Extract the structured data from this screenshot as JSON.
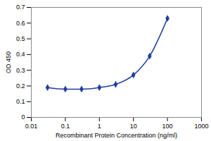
{
  "chart_data": {
    "type": "line",
    "x_label": "Recombinant Protein Concentration (ng/ml)",
    "y_label": "OD 450",
    "x": [
      0.03,
      0.1,
      0.3,
      1,
      3,
      10,
      30,
      100
    ],
    "values": [
      0.19,
      0.18,
      0.18,
      0.19,
      0.21,
      0.27,
      0.39,
      0.63
    ],
    "color": "#1f3f9f",
    "marker": "diamond",
    "line_style": "solid",
    "log": "x",
    "grid": false,
    "xlim": [
      0.01,
      1000
    ],
    "xticks": [
      0.01,
      0.1,
      1,
      10,
      100,
      1000
    ],
    "ylim": [
      0,
      0.7
    ],
    "yticks": [
      0,
      0.1,
      0.2,
      0.3,
      0.4,
      0.5,
      0.6,
      0.7
    ]
  }
}
